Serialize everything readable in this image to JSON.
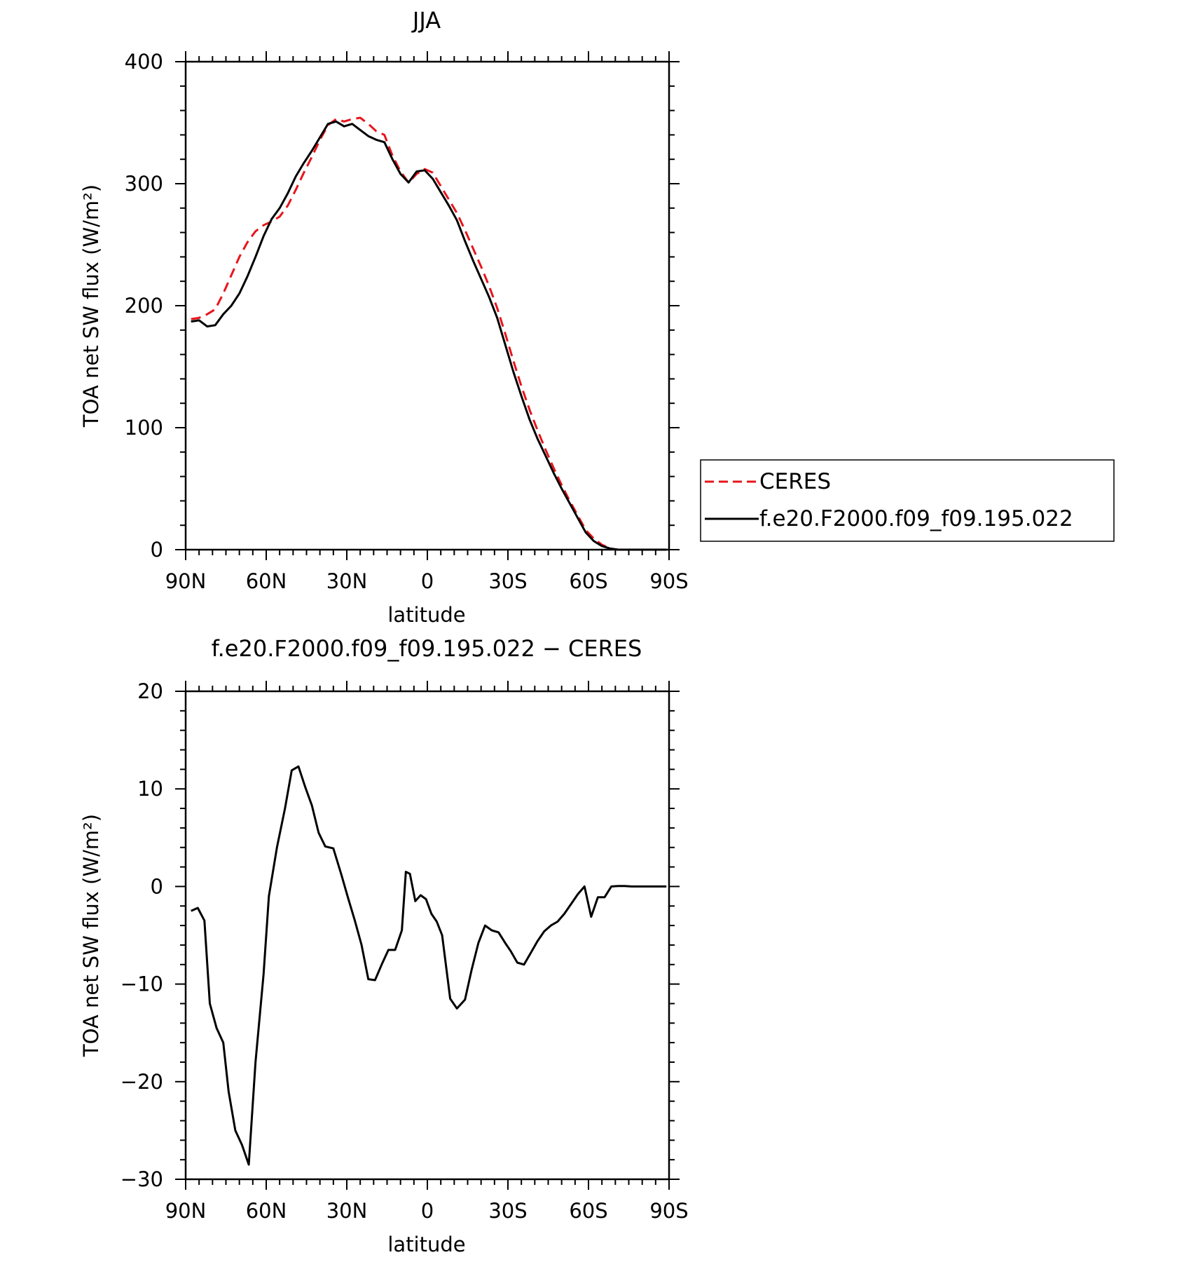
{
  "chart_data": [
    {
      "type": "line",
      "title": "JJA",
      "xlabel": "latitude",
      "ylabel": "TOA net SW flux (W/m²)",
      "xlim": [
        90,
        -90
      ],
      "ylim": [
        0,
        400
      ],
      "xticks": [
        90,
        60,
        30,
        0,
        -30,
        -60,
        -90
      ],
      "xtick_labels": [
        "90N",
        "60N",
        "30N",
        "0",
        "30S",
        "60S",
        "90S"
      ],
      "yticks": [
        0,
        100,
        200,
        300,
        400
      ],
      "ytick_labels": [
        "0",
        "100",
        "200",
        "300",
        "400"
      ],
      "grid": false,
      "legend_position": "right",
      "series": [
        {
          "name": "CERES",
          "color": "#e8151b",
          "dash": "dashed",
          "x": [
            88,
            85,
            82,
            79,
            76,
            73,
            70,
            67,
            64,
            61,
            58,
            55,
            52,
            49,
            46,
            43,
            40,
            37,
            34,
            31,
            28,
            25,
            22,
            19,
            16,
            13,
            10,
            7,
            4,
            1,
            -2,
            -5,
            -8,
            -11,
            -14,
            -17,
            -20,
            -23,
            -26,
            -29,
            -32,
            -35,
            -38,
            -41,
            -44,
            -47,
            -50,
            -53,
            -56,
            -59,
            -62,
            -65,
            -68,
            -71,
            -74,
            -77,
            -80,
            -83,
            -86,
            -89
          ],
          "y": [
            189,
            190,
            193,
            197,
            210,
            225,
            240,
            252,
            261,
            266,
            269,
            273,
            282,
            295,
            309,
            322,
            336,
            348,
            353,
            351,
            353,
            354,
            349,
            343,
            340,
            323,
            310,
            301,
            308,
            312,
            309,
            298,
            287,
            276,
            262,
            247,
            232,
            216,
            198,
            177,
            155,
            134,
            115,
            98,
            82,
            67,
            53,
            40,
            28,
            16,
            9,
            4,
            1,
            0,
            0,
            0,
            0,
            0,
            0,
            0
          ]
        },
        {
          "name": "f.e20.F2000.f09_f09.195.022",
          "color": "#000000",
          "dash": "solid",
          "x": [
            88,
            85,
            82,
            79,
            76,
            73,
            70,
            67,
            64,
            61,
            58,
            55,
            52,
            49,
            46,
            43,
            40,
            37,
            34,
            31,
            28,
            25,
            22,
            19,
            16,
            13,
            10,
            7,
            4,
            1,
            -2,
            -5,
            -8,
            -11,
            -14,
            -17,
            -20,
            -23,
            -26,
            -29,
            -32,
            -35,
            -38,
            -41,
            -44,
            -47,
            -50,
            -53,
            -56,
            -59,
            -62,
            -65,
            -68,
            -71,
            -74,
            -77,
            -80,
            -83,
            -86,
            -89
          ],
          "y": [
            187,
            188,
            183,
            184,
            193,
            200,
            210,
            224,
            240,
            257,
            271,
            280,
            292,
            306,
            317,
            327,
            338,
            349,
            351,
            347,
            349,
            344,
            339,
            336,
            334,
            320,
            308,
            301,
            310,
            311,
            304,
            293,
            282,
            270,
            253,
            237,
            222,
            207,
            190,
            168,
            146,
            126,
            107,
            91,
            77,
            63,
            50,
            38,
            26,
            14,
            7,
            3,
            1,
            0,
            0,
            0,
            0,
            0,
            0,
            0
          ]
        }
      ]
    },
    {
      "type": "line",
      "title": "f.e20.F2000.f09_f09.195.022 − CERES",
      "xlabel": "latitude",
      "ylabel": "TOA net SW flux (W/m²)",
      "xlim": [
        90,
        -90
      ],
      "ylim": [
        -30,
        20
      ],
      "xticks": [
        90,
        60,
        30,
        0,
        -30,
        -60,
        -90
      ],
      "xtick_labels": [
        "90N",
        "60N",
        "30N",
        "0",
        "30S",
        "60S",
        "90S"
      ],
      "yticks": [
        -30,
        -20,
        -10,
        0,
        10,
        20
      ],
      "ytick_labels": [
        "−30",
        "−20",
        "−10",
        "0",
        "10",
        "20"
      ],
      "grid": false,
      "series": [
        {
          "color": "#000000",
          "dash": "solid",
          "x": [
            88,
            85.5,
            83,
            81,
            78.5,
            76,
            74,
            71.5,
            69,
            66.5,
            64,
            61,
            59,
            56,
            53,
            50.5,
            48,
            45.5,
            43,
            40.5,
            38,
            35,
            32,
            29.5,
            27,
            24.5,
            22,
            19.5,
            17,
            14.5,
            12,
            9.5,
            8,
            6.5,
            4.5,
            2.5,
            0.5,
            -1.5,
            -3.5,
            -5.5,
            -8.5,
            -11,
            -14,
            -16.5,
            -19,
            -21.5,
            -24,
            -26.5,
            -29,
            -31,
            -33.5,
            -36,
            -38.5,
            -41,
            -43.5,
            -46,
            -48.5,
            -51,
            -53.5,
            -56,
            -58.5,
            -61,
            -63.5,
            -66,
            -68.5,
            -71,
            -73.5,
            -76,
            -79,
            -82,
            -85,
            -89
          ],
          "y": [
            -2.5,
            -2.2,
            -3.5,
            -12,
            -14.5,
            -16,
            -21,
            -25,
            -26.5,
            -28.5,
            -18,
            -9,
            -1,
            4,
            8,
            11.9,
            12.3,
            10.2,
            8.3,
            5.5,
            4.1,
            3.9,
            1.2,
            -1.2,
            -3.5,
            -6,
            -9.5,
            -9.6,
            -8,
            -6.5,
            -6.5,
            -4.5,
            1.5,
            1.3,
            -1.5,
            -0.9,
            -1.3,
            -2.8,
            -3.6,
            -5,
            -11.5,
            -12.5,
            -11.6,
            -8.5,
            -5.8,
            -4,
            -4.5,
            -4.7,
            -5.8,
            -6.6,
            -7.8,
            -8,
            -6.8,
            -5.6,
            -4.6,
            -4,
            -3.6,
            -2.8,
            -1.8,
            -0.8,
            0,
            -3.1,
            -1.1,
            -1.1,
            0,
            0.05,
            0.05,
            0,
            0,
            0,
            0,
            0
          ]
        }
      ]
    }
  ]
}
